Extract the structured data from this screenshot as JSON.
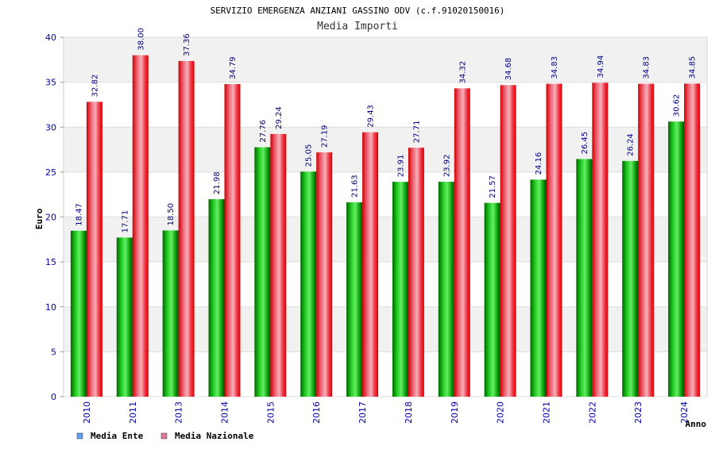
{
  "chart_data": {
    "type": "bar",
    "title": "SERVIZIO EMERGENZA ANZIANI GASSINO ODV (c.f.91020150016)",
    "subtitle": "Media Importi",
    "xlabel": "Anno",
    "ylabel": "Euro",
    "ylim": [
      0,
      40
    ],
    "ytick_step": 5,
    "grid": "horizontal bands",
    "categories": [
      "2010",
      "2011",
      "2013",
      "2014",
      "2015",
      "2016",
      "2017",
      "2018",
      "2019",
      "2020",
      "2021",
      "2022",
      "2023",
      "2024"
    ],
    "series": [
      {
        "name": "Media Ente",
        "values": [
          18.47,
          17.71,
          18.5,
          21.98,
          27.76,
          25.05,
          21.63,
          23.91,
          23.92,
          21.57,
          24.16,
          26.45,
          26.24,
          30.62
        ],
        "labels": [
          "18.47",
          "17.71",
          "18.50",
          "21.98",
          "27.76",
          "25.05",
          "21.63",
          "23.91",
          "23.92",
          "21.57",
          "24.16",
          "26.45",
          "26.24",
          "30.62"
        ],
        "color": "#00aa00",
        "legend_color": "#5aa0ff"
      },
      {
        "name": "Media Nazionale",
        "values": [
          32.82,
          38.0,
          37.36,
          34.79,
          29.24,
          27.19,
          29.43,
          27.71,
          34.32,
          34.68,
          34.83,
          34.94,
          34.83,
          34.85
        ],
        "labels": [
          "32.82",
          "38.00",
          "37.36",
          "34.79",
          "29.24",
          "27.19",
          "29.43",
          "27.71",
          "34.32",
          "34.68",
          "34.83",
          "34.94",
          "34.83",
          "34.85"
        ],
        "color": "#ee1111",
        "legend_color": "#dd7799"
      }
    ],
    "legend": "bottom-left"
  }
}
